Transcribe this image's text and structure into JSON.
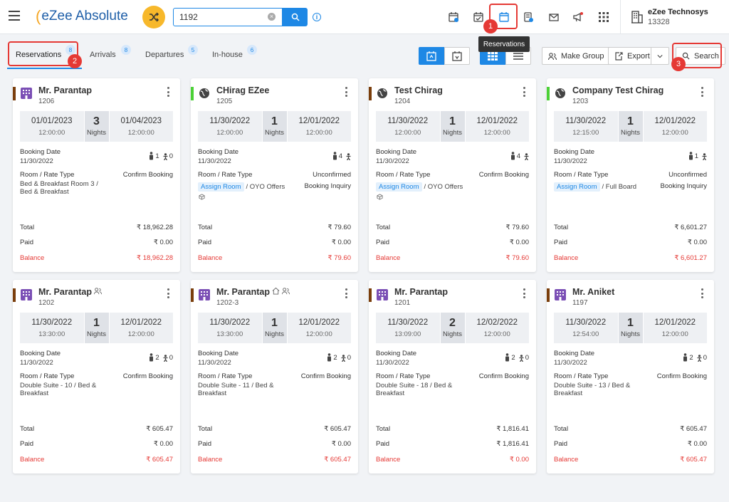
{
  "header": {
    "app_name": "eZee Absolute",
    "search_value": "1192",
    "company_name": "eZee Technosys",
    "company_code": "13328",
    "tooltip": "Reservations",
    "annotations": [
      "1",
      "2",
      "3"
    ]
  },
  "tabs": [
    {
      "label": "Reservations",
      "count": "8"
    },
    {
      "label": "Arrivals",
      "count": "8"
    },
    {
      "label": "Departures",
      "count": "5"
    },
    {
      "label": "In-house",
      "count": "6"
    }
  ],
  "actions": {
    "make_group": "Make Group",
    "export": "Export",
    "search": "Search"
  },
  "labels": {
    "nights": "Nights",
    "booking_date": "Booking Date",
    "room_rate_type": "Room / Rate Type",
    "total": "Total",
    "paid": "Paid",
    "balance": "Balance",
    "assign_room": "Assign Room"
  },
  "colors": {
    "accent": "#1e88e5",
    "alert": "#e53935",
    "brown": "#7a3e0c",
    "green": "#4cd137",
    "purple": "#7b4fb5"
  },
  "cards": [
    {
      "name": "Mr. Parantap",
      "room": "1206",
      "checkin": "01/01/2023",
      "checkin_time": "12:00:00",
      "nights": "3",
      "checkout": "01/04/2023",
      "checkout_time": "12:00:00",
      "booking_date": "11/30/2022",
      "adults": "1",
      "children": "0",
      "status": "Confirm Booking",
      "rate": "Bed & Breakfast Room 3 / Bed & Breakfast",
      "total": "₹ 18,962.28",
      "paid": "₹ 0.00",
      "balance": "₹ 18,962.28"
    },
    {
      "name": "CHirag EZee",
      "room": "1205",
      "checkin": "11/30/2022",
      "checkin_time": "12:00:00",
      "nights": "1",
      "checkout": "12/01/2022",
      "checkout_time": "12:00:00",
      "booking_date": "11/30/2022",
      "adults": "4",
      "children": "",
      "status": "Unconfirmed",
      "status2": "Booking Inquiry",
      "rate": "/ OYO Offers",
      "total": "₹ 79.60",
      "paid": "₹ 0.00",
      "balance": "₹ 79.60"
    },
    {
      "name": "Test Chirag",
      "room": "1204",
      "checkin": "11/30/2022",
      "checkin_time": "12:00:00",
      "nights": "1",
      "checkout": "12/01/2022",
      "checkout_time": "12:00:00",
      "booking_date": "11/30/2022",
      "adults": "4",
      "children": "",
      "status": "Confirm Booking",
      "rate": "/ OYO Offers",
      "total": "₹ 79.60",
      "paid": "₹ 0.00",
      "balance": "₹ 79.60"
    },
    {
      "name": "Company Test Chirag",
      "room": "1203",
      "checkin": "11/30/2022",
      "checkin_time": "12:15:00",
      "nights": "1",
      "checkout": "12/01/2022",
      "checkout_time": "12:00:00",
      "booking_date": "11/30/2022",
      "adults": "1",
      "children": "",
      "status": "Unconfirmed",
      "status2": "Booking Inquiry",
      "rate": "/ Full Board",
      "total": "₹ 6,601.27",
      "paid": "₹ 0.00",
      "balance": "₹ 6,601.27"
    },
    {
      "name": "Mr. Parantap",
      "room": "1202",
      "checkin": "11/30/2022",
      "checkin_time": "13:30:00",
      "nights": "1",
      "checkout": "12/01/2022",
      "checkout_time": "12:00:00",
      "booking_date": "11/30/2022",
      "adults": "2",
      "children": "0",
      "status": "Confirm Booking",
      "rate": "Double Suite - 10 / Bed & Breakfast",
      "total": "₹ 605.47",
      "paid": "₹ 0.00",
      "balance": "₹ 605.47"
    },
    {
      "name": "Mr. Parantap",
      "room": "1202-3",
      "checkin": "11/30/2022",
      "checkin_time": "13:30:00",
      "nights": "1",
      "checkout": "12/01/2022",
      "checkout_time": "12:00:00",
      "booking_date": "11/30/2022",
      "adults": "2",
      "children": "0",
      "status": "Confirm Booking",
      "rate": "Double Suite - 11 / Bed & Breakfast",
      "total": "₹ 605.47",
      "paid": "₹ 0.00",
      "balance": "₹ 605.47"
    },
    {
      "name": "Mr. Parantap",
      "room": "1201",
      "checkin": "11/30/2022",
      "checkin_time": "13:09:00",
      "nights": "2",
      "checkout": "12/02/2022",
      "checkout_time": "12:00:00",
      "booking_date": "11/30/2022",
      "adults": "2",
      "children": "0",
      "status": "Confirm Booking",
      "rate": "Double Suite - 18 / Bed & Breakfast",
      "total": "₹ 1,816.41",
      "paid": "₹ 1,816.41",
      "balance": "₹ 0.00"
    },
    {
      "name": "Mr. Aniket",
      "room": "1197",
      "checkin": "11/30/2022",
      "checkin_time": "12:54:00",
      "nights": "1",
      "checkout": "12/01/2022",
      "checkout_time": "12:00:00",
      "booking_date": "11/30/2022",
      "adults": "2",
      "children": "0",
      "status": "Confirm Booking",
      "rate": "Double Suite - 13 / Bed & Breakfast",
      "total": "₹ 605.47",
      "paid": "₹ 0.00",
      "balance": "₹ 605.47"
    }
  ]
}
